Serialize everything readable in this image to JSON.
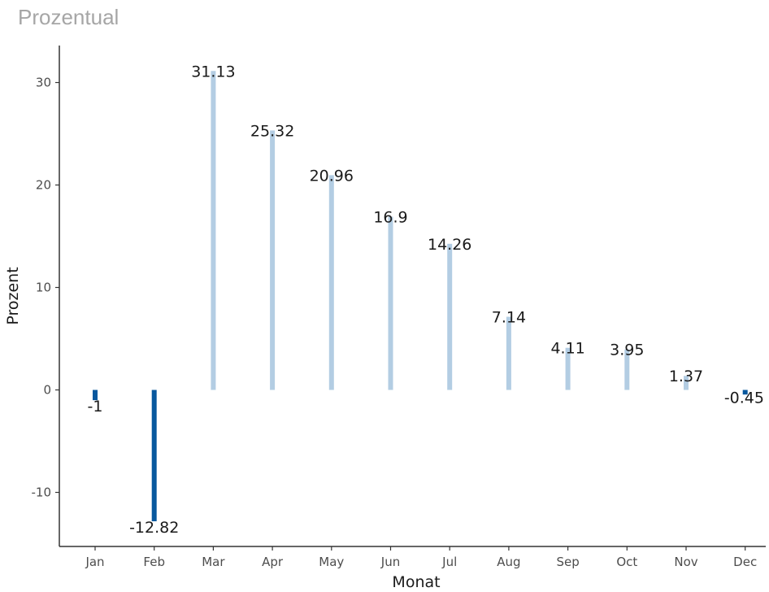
{
  "chart_data": {
    "type": "bar",
    "title": "Prozentual",
    "xlabel": "Monat",
    "ylabel": "Prozent",
    "categories": [
      "Jan",
      "Feb",
      "Mar",
      "Apr",
      "May",
      "Jun",
      "Jul",
      "Aug",
      "Sep",
      "Oct",
      "Nov",
      "Dec"
    ],
    "values": [
      -1,
      -12.82,
      31.13,
      25.32,
      20.96,
      16.9,
      14.26,
      7.14,
      4.11,
      3.95,
      1.37,
      -0.45
    ],
    "ylim": [
      -15,
      33
    ],
    "yticks": [
      -10,
      0,
      10,
      20,
      30
    ],
    "grid": false,
    "colors": {
      "negative": "#08589e",
      "positive": "#b3cde3",
      "axis": "#333333"
    }
  }
}
